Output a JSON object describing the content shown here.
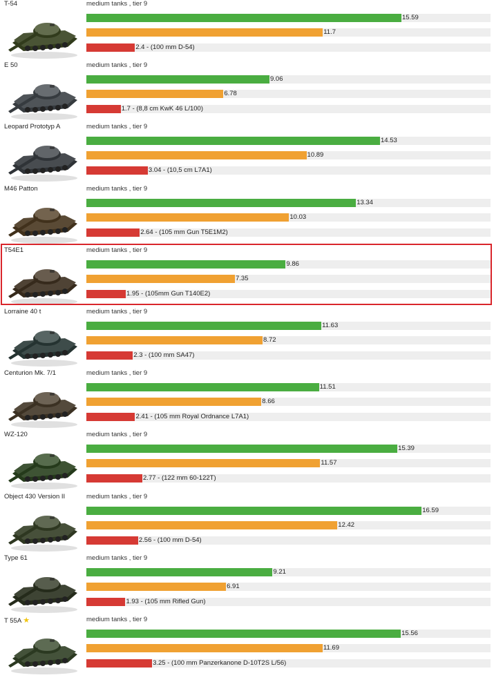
{
  "colors": {
    "green": "#4aad41",
    "orange": "#f0a132",
    "red": "#d63a34",
    "highlight": "#d9252b",
    "track": "#eeeeee"
  },
  "chart_data": {
    "type": "bar",
    "orientation": "horizontal",
    "grid": false,
    "xlim": [
      0,
      20
    ],
    "series": [
      {
        "key": "green",
        "values": [
          15.59,
          9.06,
          14.53,
          13.34,
          9.86,
          11.63,
          11.51,
          15.39,
          16.59,
          9.21,
          15.56
        ]
      },
      {
        "key": "orange",
        "values": [
          11.7,
          6.78,
          10.89,
          10.03,
          7.35,
          8.72,
          8.66,
          11.57,
          12.42,
          6.91,
          11.69
        ]
      },
      {
        "key": "red",
        "values": [
          2.4,
          1.7,
          3.04,
          2.64,
          1.95,
          2.3,
          2.41,
          2.77,
          2.56,
          1.93,
          3.25
        ]
      }
    ],
    "tanks": [
      {
        "name": "T-54",
        "class": "medium tanks , tier 9",
        "green": "15.59",
        "orange": "11.7",
        "red": "2.4 - (100 mm D-54)",
        "green_value": 15.59,
        "orange_value": 11.7,
        "red_value": 2.4,
        "body_color": "#4a5435",
        "star": false,
        "highlighted": false
      },
      {
        "name": "E 50",
        "class": "medium tanks , tier 9",
        "green": "9.06",
        "orange": "6.78",
        "red": "1.7 - (8,8 cm KwK 46 L/100)",
        "green_value": 9.06,
        "orange_value": 6.78,
        "red_value": 1.7,
        "body_color": "#4f5458",
        "star": false,
        "highlighted": false
      },
      {
        "name": "Leopard Prototyp A",
        "class": "medium tanks , tier 9",
        "green": "14.53",
        "orange": "10.89",
        "red": "3.04 - (10,5 cm L7A1)",
        "green_value": 14.53,
        "orange_value": 10.89,
        "red_value": 3.04,
        "body_color": "#484c50",
        "star": false,
        "highlighted": false
      },
      {
        "name": "M46 Patton",
        "class": "medium tanks , tier 9",
        "green": "13.34",
        "orange": "10.03",
        "red": "2.64 - (105 mm Gun T5E1M2)",
        "green_value": 13.34,
        "orange_value": 10.03,
        "red_value": 2.64,
        "body_color": "#5a4a35",
        "star": false,
        "highlighted": false
      },
      {
        "name": "T54E1",
        "class": "medium tanks , tier 9",
        "green": "9.86",
        "orange": "7.35",
        "red": "1.95 - (105mm Gun T140E2)",
        "green_value": 9.86,
        "orange_value": 7.35,
        "red_value": 1.95,
        "body_color": "#4f4335",
        "star": false,
        "highlighted": true
      },
      {
        "name": "Lorraine 40 t",
        "class": "medium tanks , tier 9",
        "green": "11.63",
        "orange": "8.72",
        "red": "2.3 - (100 mm SA47)",
        "green_value": 11.63,
        "orange_value": 8.72,
        "red_value": 2.3,
        "body_color": "#3e4c4a",
        "star": false,
        "highlighted": false
      },
      {
        "name": "Centurion Mk. 7/1",
        "class": "medium tanks , tier 9",
        "green": "11.51",
        "orange": "8.66",
        "red": "2.41 - (105 mm Royal Ordnance L7A1)",
        "green_value": 11.51,
        "orange_value": 8.66,
        "red_value": 2.41,
        "body_color": "#544a3c",
        "star": false,
        "highlighted": false
      },
      {
        "name": "WZ-120",
        "class": "medium tanks , tier 9",
        "green": "15.39",
        "orange": "11.57",
        "red": "2.77 - (122 mm 60-122T)",
        "green_value": 15.39,
        "orange_value": 11.57,
        "red_value": 2.77,
        "body_color": "#3e5334",
        "star": false,
        "highlighted": false
      },
      {
        "name": "Object 430 Version II",
        "class": "medium tanks , tier 9",
        "green": "16.59",
        "orange": "12.42",
        "red": "2.56 - (100 mm D-54)",
        "green_value": 16.59,
        "orange_value": 12.42,
        "red_value": 2.56,
        "body_color": "#47503a",
        "star": false,
        "highlighted": false
      },
      {
        "name": "Type 61",
        "class": "medium tanks , tier 9",
        "green": "9.21",
        "orange": "6.91",
        "red": "1.93 - (105 mm Rifled Gun)",
        "green_value": 9.21,
        "orange_value": 6.91,
        "red_value": 1.93,
        "body_color": "#3e4434",
        "star": false,
        "highlighted": false
      },
      {
        "name": "T 55A",
        "class": "medium tanks , tier 9",
        "green": "15.56",
        "orange": "11.69",
        "red": "3.25 - (100 mm Panzerkanone D-10T2S L/56)",
        "green_value": 15.56,
        "orange_value": 11.69,
        "red_value": 3.25,
        "body_color": "#44523a",
        "star": true,
        "highlighted": false
      }
    ]
  }
}
